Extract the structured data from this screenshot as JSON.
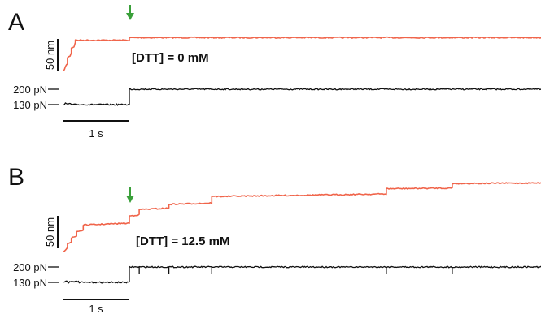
{
  "chart_data": [
    {
      "type": "line",
      "panel": "A",
      "annotation": "[DTT] = 0 mM",
      "scale_bars": {
        "extension": "50 nm",
        "time": "1 s"
      },
      "force_tick_labels": [
        "200 pN",
        "130 pN"
      ],
      "colors": {
        "extension": "#f0644a",
        "force": "#111111",
        "arrow": "#3aa03a"
      },
      "arrow_time_s": 1.0,
      "x_range_s": [
        0,
        7.5
      ],
      "extension_y_range_nm": [
        0,
        65
      ],
      "series": [
        {
          "name": "extension",
          "x": [
            0,
            0.03,
            0.06,
            0.06,
            0.1,
            0.12,
            0.12,
            0.16,
            0.18,
            0.18,
            1.0,
            1.0,
            7.5
          ],
          "y": [
            0,
            7,
            12,
            21,
            24,
            29,
            36,
            38,
            45,
            48,
            48,
            52,
            52
          ]
        },
        {
          "name": "force",
          "x": [
            0,
            0.03,
            0.06,
            0.09,
            0.12,
            1.0,
            1.0,
            7.5
          ],
          "y": [
            130,
            136,
            130,
            136,
            130,
            130,
            200,
            200
          ],
          "unit": "pN"
        }
      ]
    },
    {
      "type": "line",
      "panel": "B",
      "annotation": "[DTT] = 12.5 mM",
      "scale_bars": {
        "extension": "50 nm",
        "time": "1 s"
      },
      "force_tick_labels": [
        "200 pN",
        "130 pN"
      ],
      "colors": {
        "extension": "#f0644a",
        "force": "#111111",
        "arrow": "#3aa03a"
      },
      "arrow_time_s": 1.0,
      "x_range_s": [
        0,
        7.5
      ],
      "extension_y_range_nm": [
        0,
        100
      ],
      "series": [
        {
          "name": "extension",
          "x": [
            0,
            0.06,
            0.06,
            0.12,
            0.12,
            0.2,
            0.2,
            0.3,
            0.3,
            1.0,
            1.0,
            1.15,
            1.15,
            1.6,
            1.6,
            2.25,
            2.25,
            4.9,
            4.9,
            5.9,
            5.9,
            7.5
          ],
          "y": [
            0,
            8,
            14,
            16,
            22,
            25,
            32,
            34,
            42,
            45,
            56,
            58,
            66,
            68,
            74,
            76,
            86,
            90,
            98,
            99,
            106,
            107
          ]
        },
        {
          "name": "force",
          "x": [
            0,
            0.04,
            0.08,
            0.12,
            0.16,
            0.2,
            0.24,
            1.0,
            1.0,
            7.5
          ],
          "y": [
            130,
            137,
            130,
            137,
            130,
            137,
            130,
            130,
            200,
            200
          ],
          "unit": "pN",
          "event_times_s": [
            1.15,
            1.6,
            2.25,
            4.9,
            5.9
          ]
        }
      ]
    }
  ]
}
